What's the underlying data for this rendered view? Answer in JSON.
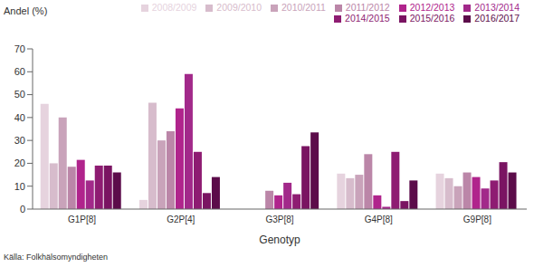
{
  "chart_data": {
    "type": "bar",
    "y_label": "Andel (%)",
    "x_label": "Genotyp",
    "source": "Källa: Folkhälsomyndigheten",
    "categories": [
      "G1P[8]",
      "G2P[4]",
      "G3P[8]",
      "G4P[8]",
      "G9P[8]"
    ],
    "series": [
      {
        "name": "2008/2009",
        "color": "#e6d3de",
        "values": [
          46,
          4,
          null,
          15.5,
          15.5
        ]
      },
      {
        "name": "2009/2010",
        "color": "#d7bccc",
        "values": [
          20,
          46.5,
          null,
          13.5,
          13.5
        ]
      },
      {
        "name": "2010/2011",
        "color": "#c9a3ba",
        "values": [
          40,
          30,
          null,
          15,
          10
        ]
      },
      {
        "name": "2011/2012",
        "color": "#bb86a8",
        "values": [
          18.5,
          34,
          8,
          24,
          16
        ]
      },
      {
        "name": "2012/2013",
        "color": "#b0248c",
        "values": [
          21.5,
          44,
          6,
          6,
          14
        ]
      },
      {
        "name": "2013/2014",
        "color": "#a2298a",
        "values": [
          12.5,
          59,
          11.5,
          1,
          9
        ]
      },
      {
        "name": "2014/2015",
        "color": "#8e1c72",
        "values": [
          19,
          25,
          6.5,
          25,
          12.5
        ]
      },
      {
        "name": "2015/2016",
        "color": "#7a1462",
        "values": [
          19,
          7,
          27.5,
          3.5,
          20.5
        ]
      },
      {
        "name": "2016/2017",
        "color": "#5c0c4a",
        "values": [
          16,
          14,
          33.5,
          12.5,
          16
        ]
      }
    ],
    "ylim": [
      0,
      70
    ],
    "yticks": [
      0,
      10,
      20,
      30,
      40,
      50,
      60,
      70
    ],
    "grid": false,
    "legend": "top"
  }
}
